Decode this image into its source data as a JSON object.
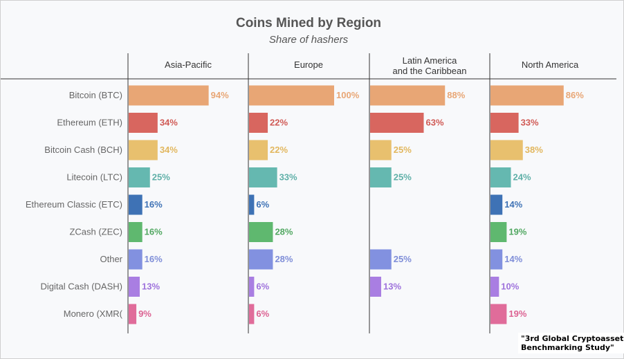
{
  "chart_data": {
    "type": "bar",
    "title": "Coins Mined by Region",
    "subtitle": "Share of hashers",
    "panels": [
      "Asia-Pacific",
      "Europe",
      "Latin America\nand the Caribbean",
      "North America"
    ],
    "categories": [
      "Bitcoin (BTC)",
      "Ethereum (ETH)",
      "Bitcoin Cash (BCH)",
      "Litecoin (LTC)",
      "Ethereum Classic (ETC)",
      "ZCash (ZEC)",
      "Other",
      "Digital Cash (DASH)",
      "Monero (XMR("
    ],
    "series": [
      {
        "panel": "Asia-Pacific",
        "values": [
          94,
          34,
          34,
          25,
          16,
          16,
          16,
          13,
          9
        ]
      },
      {
        "panel": "Europe",
        "values": [
          100,
          22,
          22,
          33,
          6,
          28,
          28,
          6,
          6
        ]
      },
      {
        "panel": "Latin America and the Caribbean",
        "values": [
          88,
          63,
          25,
          25,
          null,
          null,
          25,
          13,
          null
        ]
      },
      {
        "panel": "North America",
        "values": [
          86,
          33,
          38,
          24,
          14,
          19,
          14,
          10,
          19
        ]
      }
    ],
    "value_suffix": "%",
    "xlim": [
      0,
      100
    ],
    "colors": [
      "#e8a675",
      "#d8665f",
      "#e8c06e",
      "#65b8b0",
      "#3e72b5",
      "#5fb86f",
      "#8291e0",
      "#a97ee2",
      "#e06c9a"
    ],
    "label_colors": [
      "#e8a675",
      "#d05a55",
      "#e2b75e",
      "#5fb0a8",
      "#3e72b5",
      "#52a862",
      "#7f8ed8",
      "#9e72dc",
      "#dc6292"
    ],
    "grid": false
  },
  "credit": "\"3rd Global Cryptoasset\nBenchmarking Study\""
}
